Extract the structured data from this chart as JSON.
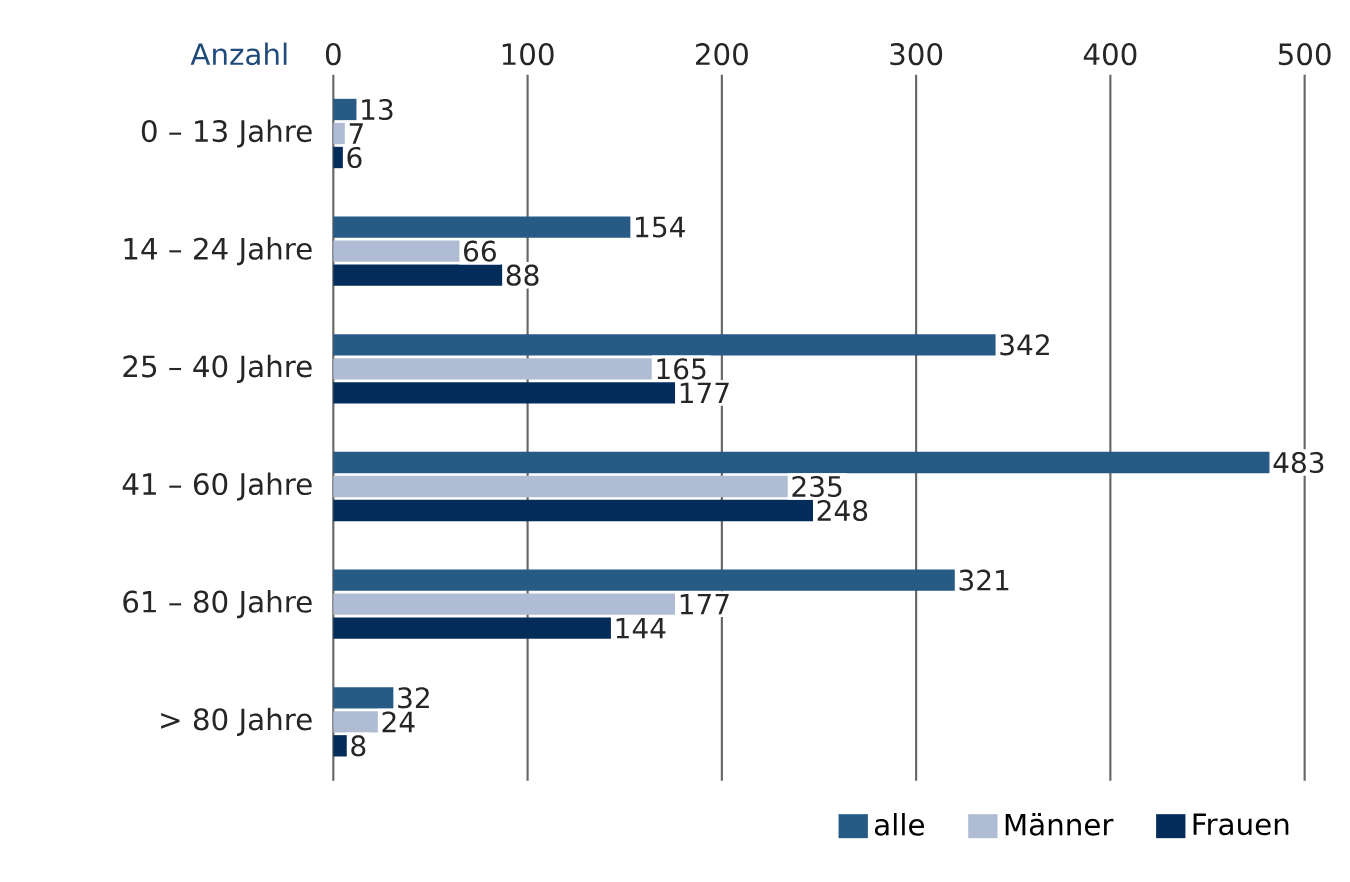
{
  "chart_data": {
    "type": "bar",
    "orientation": "horizontal",
    "xlabel": "Anzahl",
    "categories": [
      "0 – 13 Jahre",
      "14 – 24 Jahre",
      "25 – 40 Jahre",
      "41 – 60 Jahre",
      "61 – 80 Jahre",
      "> 80 Jahre"
    ],
    "series": [
      {
        "name": "alle",
        "color": "#275a85",
        "values": [
          13,
          154,
          342,
          483,
          321,
          32
        ]
      },
      {
        "name": "Männer",
        "color": "#afbcd4",
        "values": [
          7,
          66,
          165,
          235,
          177,
          24
        ]
      },
      {
        "name": "Frauen",
        "color": "#042c5a",
        "values": [
          6,
          88,
          177,
          248,
          144,
          8
        ]
      }
    ],
    "xlim": [
      0,
      500
    ],
    "xticks": [
      0,
      100,
      200,
      300,
      400,
      500
    ],
    "grid": "x",
    "data_labels": true,
    "legend": "bottom right"
  }
}
